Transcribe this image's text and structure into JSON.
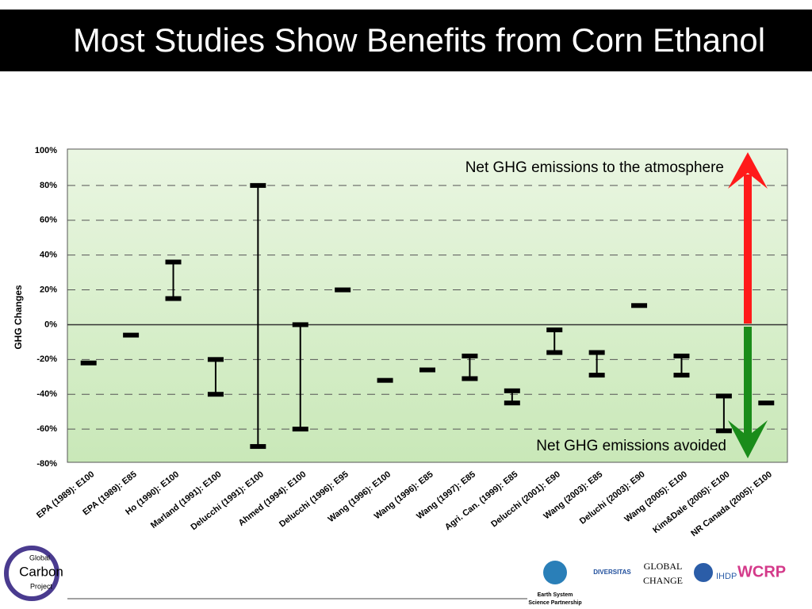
{
  "chart_data": {
    "type": "range",
    "title": "Most Studies Show Benefits from Corn Ethanol",
    "ylabel": "GHG Changes",
    "annotations": [
      "Net GHG emissions to the atmosphere",
      "Net GHG emissions avoided"
    ],
    "categories": [
      "EPA (1989): E100",
      "EPA (1989): E85",
      "Ho (1990): E100",
      "Marland (1991): E100",
      "Delucchi (1991): E100",
      "Ahmed (1994): E100",
      "Delucchi (1996): E95",
      "Wang (1996): E100",
      "Wang (1996): E85",
      "Wang (1997): E85",
      "Agri. Can. (1999): E85",
      "Delucchi (2001): E90",
      "Wang (2003): E85",
      "Deluchi (2003): E90",
      "Wang (2005): E100",
      "Kim&Dale (2005): E100",
      "NR Canada (2005): E100"
    ],
    "high": [
      -22,
      -6,
      36,
      -20,
      80,
      0,
      20,
      -32,
      -26,
      -18,
      -38,
      -3,
      -16,
      11,
      -18,
      -41,
      -45
    ],
    "low": [
      null,
      null,
      15,
      -40,
      -70,
      -60,
      null,
      null,
      null,
      -31,
      -45,
      -16,
      -29,
      null,
      -29,
      -61,
      null
    ],
    "color": "#000000",
    "ylim": [
      -80,
      100
    ],
    "yticks": [
      {
        "value": -80,
        "label": "-80%"
      },
      {
        "value": -60,
        "label": "-60%"
      },
      {
        "value": -40,
        "label": "-40%"
      },
      {
        "value": -20,
        "label": "-20%"
      },
      {
        "value": 0,
        "label": "0%"
      },
      {
        "value": 20,
        "label": "20%"
      },
      {
        "value": 40,
        "label": "40%"
      },
      {
        "value": 60,
        "label": "60%"
      },
      {
        "value": 80,
        "label": "80%"
      },
      {
        "value": 100,
        "label": "100%"
      }
    ],
    "grid": true
  },
  "footer": {
    "left_logo": [
      "Global",
      "Carbon",
      "Project"
    ],
    "essp": [
      "Earth System",
      "Science Partnership"
    ],
    "logos": [
      "DIVERSITAS",
      "GLOBAL",
      "CHANGE",
      "IHDP",
      "WCRP"
    ]
  }
}
